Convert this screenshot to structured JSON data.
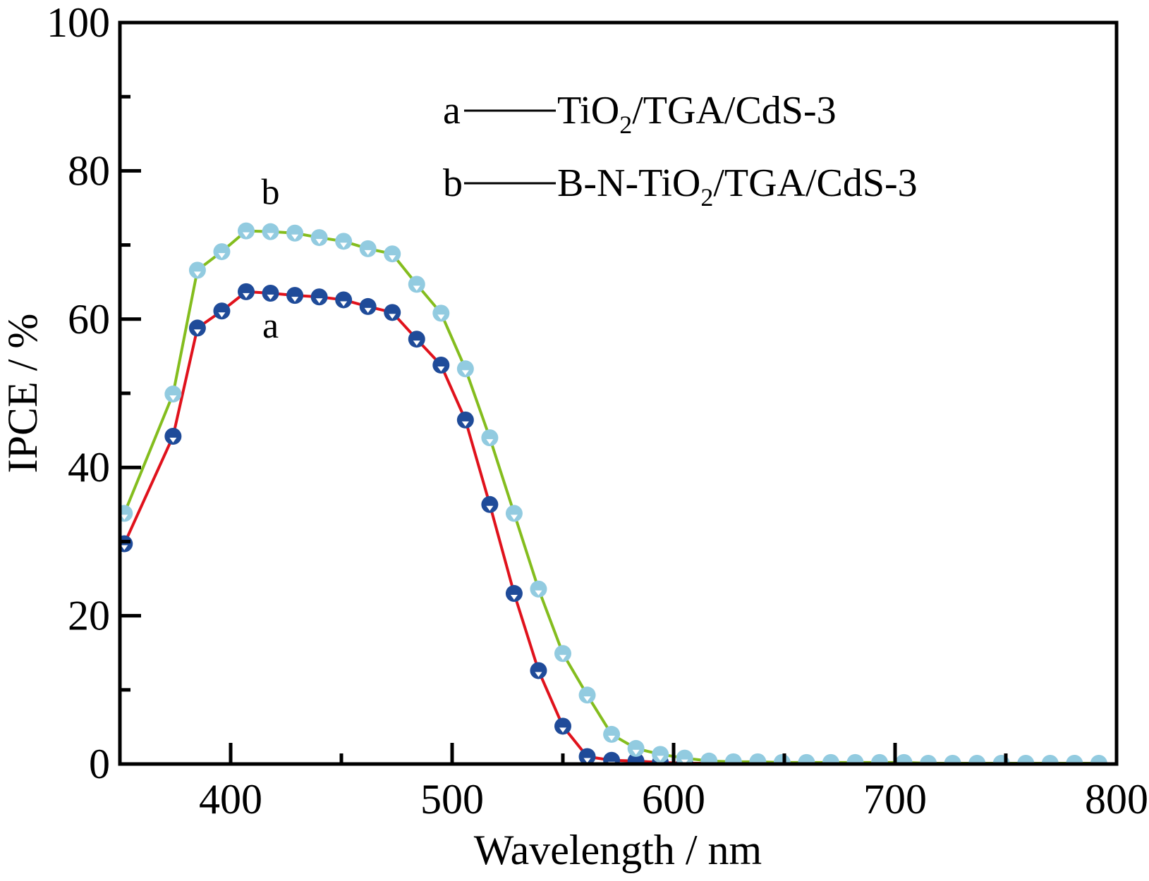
{
  "chart_data": {
    "type": "line",
    "title": "",
    "xlabel": "Wavelength / nm",
    "ylabel": "IPCE / %",
    "xlim": [
      350,
      800
    ],
    "ylim": [
      0,
      100
    ],
    "x_ticks": [
      400,
      500,
      600,
      700,
      800
    ],
    "x_minor_ticks": [
      450,
      550,
      650,
      750
    ],
    "y_ticks": [
      0,
      20,
      40,
      60,
      80,
      100
    ],
    "y_minor_ticks": [
      10,
      30,
      50,
      70,
      90
    ],
    "grid": false,
    "legend_position": "top-right",
    "legend": [
      {
        "key": "a",
        "label": "TiO",
        "sub": "2",
        "rest": "/TGA/CdS-3"
      },
      {
        "key": "b",
        "label": "B-N-TiO",
        "sub": "2",
        "rest": "/TGA/CdS-3"
      }
    ],
    "annotations": [
      {
        "text": "b",
        "x": 418,
        "y": 75.5
      },
      {
        "text": "a",
        "x": 418,
        "y": 57.5
      }
    ],
    "marker": "filled circle with white down-triangle",
    "series": [
      {
        "name": "a",
        "label": "TiO2/TGA/CdS-3",
        "line_color": "#e0121c",
        "marker_color": "#1f4b99",
        "x": [
          352,
          374,
          385,
          396,
          407,
          418,
          429,
          440,
          451,
          462,
          473,
          484,
          495,
          506,
          517,
          528,
          539,
          550,
          561,
          572,
          583,
          594,
          605,
          616,
          627,
          638,
          649,
          660,
          671,
          682,
          693,
          704,
          715,
          726,
          737,
          748,
          759,
          770,
          781,
          792
        ],
        "y": [
          29.7,
          44.2,
          58.8,
          61.1,
          63.7,
          63.5,
          63.2,
          63.0,
          62.6,
          61.7,
          60.9,
          57.3,
          53.8,
          46.4,
          35.0,
          23.0,
          12.6,
          5.1,
          1.0,
          0.5,
          0.4,
          0.2,
          0.1,
          0.1,
          0.1,
          0.1,
          0.0,
          0.0,
          0.0,
          0.0,
          0.0,
          0.0,
          0.0,
          0.0,
          0.0,
          0.0,
          0.0,
          0.0,
          0.0,
          0.0
        ]
      },
      {
        "name": "b",
        "label": "B-N-TiO2/TGA/CdS-3",
        "line_color": "#84bd1e",
        "marker_color": "#92cbe0",
        "x": [
          352,
          374,
          385,
          396,
          407,
          418,
          429,
          440,
          451,
          462,
          473,
          484,
          495,
          506,
          517,
          528,
          539,
          550,
          561,
          572,
          583,
          594,
          605,
          616,
          627,
          638,
          649,
          660,
          671,
          682,
          693,
          704,
          715,
          726,
          737,
          748,
          759,
          770,
          781,
          792
        ],
        "y": [
          33.8,
          49.9,
          66.6,
          69.1,
          71.9,
          71.8,
          71.6,
          71.0,
          70.5,
          69.5,
          68.8,
          64.7,
          60.8,
          53.3,
          44.0,
          33.8,
          23.6,
          14.9,
          9.3,
          4.0,
          2.1,
          1.3,
          0.8,
          0.4,
          0.3,
          0.3,
          0.2,
          0.2,
          0.2,
          0.2,
          0.2,
          0.2,
          0.1,
          0.1,
          0.1,
          0.1,
          0.1,
          0.1,
          0.1,
          0.1
        ]
      }
    ]
  }
}
